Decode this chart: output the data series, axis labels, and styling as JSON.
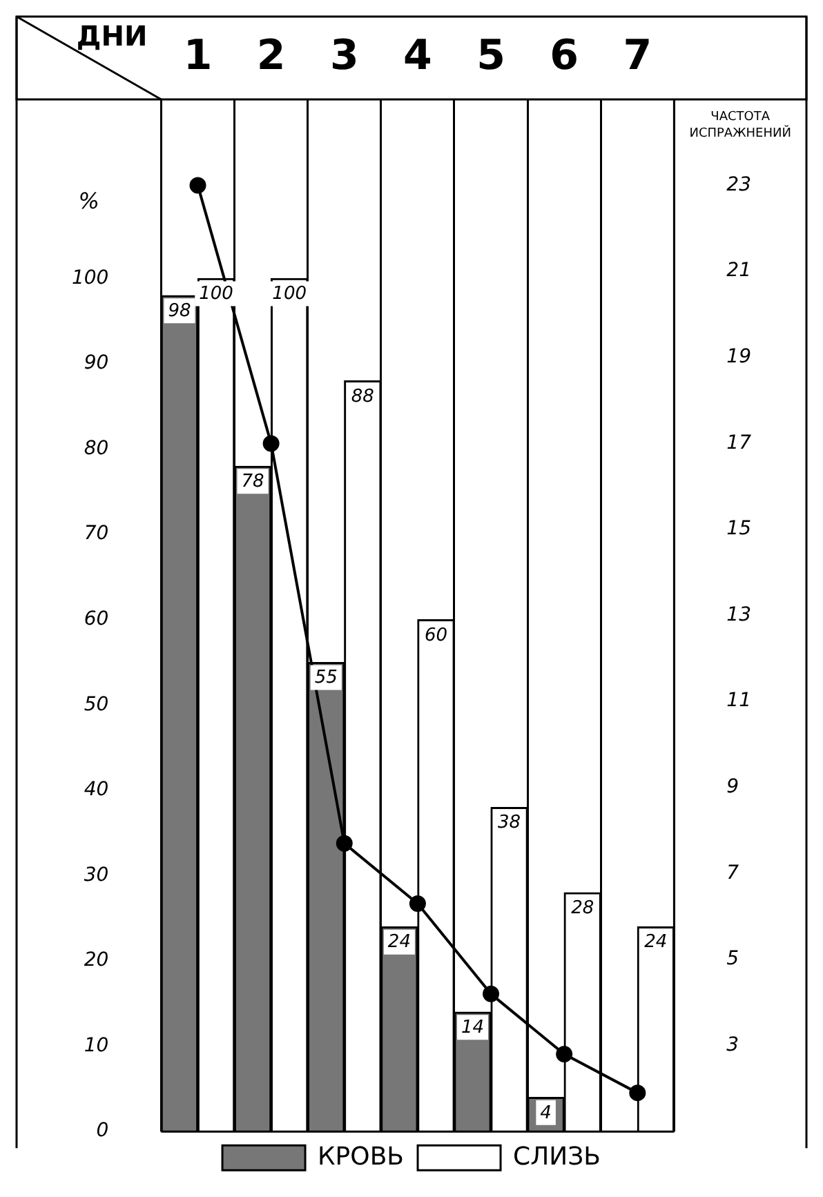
{
  "chart_data": {
    "type": "bar",
    "xlabel": "ДНИ",
    "ylabel": "%",
    "y2label": "ЧАСТОТА ИСПРАЖНЕНИЙ",
    "categories": [
      "1",
      "2",
      "3",
      "4",
      "5",
      "6",
      "7"
    ],
    "series": [
      {
        "name": "КРОВЬ",
        "color": "#777777",
        "values": [
          98,
          78,
          55,
          24,
          14,
          4,
          null
        ],
        "value_labels": [
          "98",
          "78",
          "55",
          "24",
          "14",
          "4",
          null
        ]
      },
      {
        "name": "СЛИЗЬ",
        "color": "#ffffff",
        "values": [
          100,
          100,
          88,
          60,
          38,
          28,
          24
        ],
        "value_labels": [
          "100",
          "100",
          "88",
          "60",
          "38",
          "28",
          "24"
        ]
      },
      {
        "type": "line",
        "axis": "y2",
        "color": "#000000",
        "values": [
          23,
          17,
          7.7,
          6.3,
          4.2,
          2.8,
          1.9
        ]
      }
    ],
    "ylim": [
      0,
      121
    ],
    "yticks": [
      0,
      10,
      20,
      30,
      40,
      50,
      60,
      70,
      80,
      90,
      100
    ],
    "y2lim": [
      1,
      25
    ],
    "y2ticks": [
      3,
      5,
      7,
      9,
      11,
      13,
      15,
      17,
      19,
      21,
      23
    ],
    "grid": "x",
    "legend": "bottom",
    "marker": "circle",
    "line_style": "solid"
  }
}
